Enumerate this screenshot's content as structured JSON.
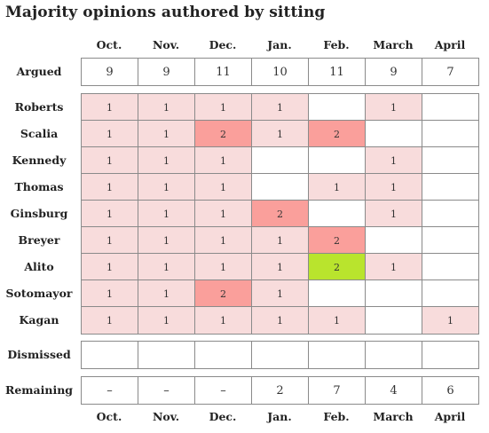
{
  "chart_data": {
    "type": "table",
    "title": "Majority opinions authored by sitting",
    "months": [
      "Oct.",
      "Nov.",
      "Dec.",
      "Jan.",
      "Feb.",
      "March",
      "April"
    ],
    "argued": {
      "label": "Argued",
      "values": [
        "9",
        "9",
        "11",
        "10",
        "11",
        "9",
        "7"
      ]
    },
    "justices": [
      {
        "name": "Roberts",
        "values": [
          "1",
          "1",
          "1",
          "1",
          "",
          "1",
          ""
        ]
      },
      {
        "name": "Scalia",
        "values": [
          "1",
          "1",
          "2",
          "1",
          "2",
          "",
          ""
        ]
      },
      {
        "name": "Kennedy",
        "values": [
          "1",
          "1",
          "1",
          "",
          "",
          "1",
          ""
        ]
      },
      {
        "name": "Thomas",
        "values": [
          "1",
          "1",
          "1",
          "",
          "1",
          "1",
          ""
        ]
      },
      {
        "name": "Ginsburg",
        "values": [
          "1",
          "1",
          "1",
          "2",
          "",
          "1",
          ""
        ]
      },
      {
        "name": "Breyer",
        "values": [
          "1",
          "1",
          "1",
          "1",
          "2",
          "",
          ""
        ]
      },
      {
        "name": "Alito",
        "values": [
          "1",
          "1",
          "1",
          "1",
          "2",
          "1",
          ""
        ]
      },
      {
        "name": "Sotomayor",
        "values": [
          "1",
          "1",
          "2",
          "1",
          "",
          "",
          ""
        ]
      },
      {
        "name": "Kagan",
        "values": [
          "1",
          "1",
          "1",
          "1",
          "1",
          "",
          "1"
        ]
      }
    ],
    "highlight": {
      "justice": "Alito",
      "month": "Feb."
    },
    "dismissed": {
      "label": "Dismissed",
      "values": [
        "",
        "",
        "",
        "",
        "",
        "",
        ""
      ]
    },
    "remaining": {
      "label": "Remaining",
      "values": [
        "–",
        "–",
        "–",
        "2",
        "7",
        "4",
        "6"
      ]
    },
    "colors": {
      "one": "#f8dcdc",
      "two": "#fa9f9b",
      "highlight": "#b9e42d",
      "empty": "#ffffff",
      "border": "#8a8a8a"
    }
  }
}
